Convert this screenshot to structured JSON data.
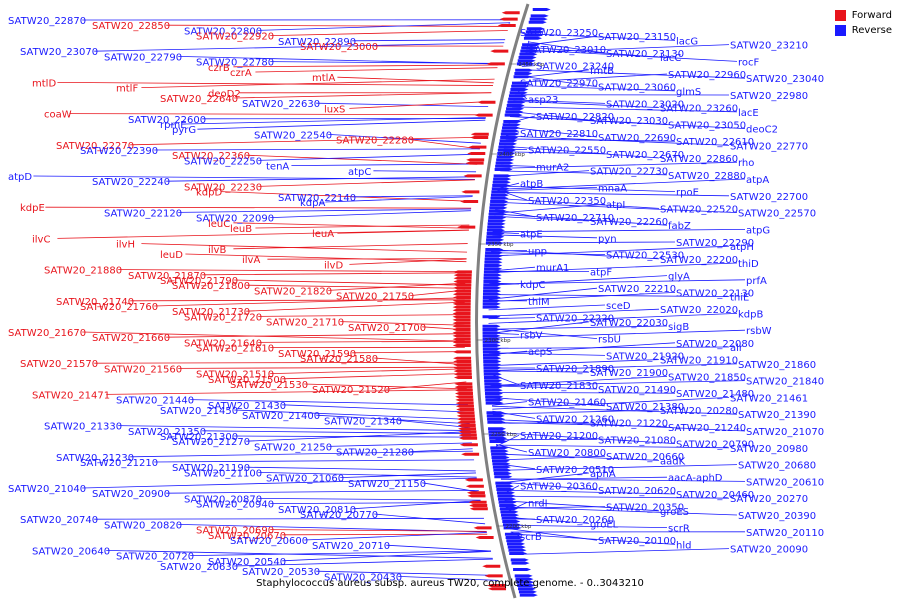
{
  "title": "Staphylococcus aureus subsp. aureus TW20, complete genome. - 0..3043210",
  "legend": [
    {
      "label": "Forward",
      "color": "#e8141c"
    },
    {
      "label": "Reverse",
      "color": "#1a1aff"
    }
  ],
  "scale_labels": [
    "2450 kbp",
    "2400 kbp",
    "2350 kbp",
    "2300 kbp",
    "2250 kbp",
    "2200 kbp"
  ],
  "left_labels": [
    [
      "SATW20_22870",
      "r"
    ],
    [
      "SATW20_22850",
      "f"
    ],
    [
      "SATW20_22800",
      "r"
    ],
    [
      "SATW20_22920",
      "f"
    ],
    [
      "SATW20_22890",
      "r"
    ],
    [
      "SATW20_23000",
      "f"
    ],
    [
      "SATW20_23070",
      "r"
    ],
    [
      "SATW20_22790",
      "r"
    ],
    [
      "SATW20_22780",
      "r"
    ],
    [
      "czrB",
      "f"
    ],
    [
      "czrA",
      "f"
    ],
    [
      "mtlA",
      "f"
    ],
    [
      "mtlD",
      "f"
    ],
    [
      "mtlF",
      "f"
    ],
    [
      "deoD2",
      "f"
    ],
    [
      "SATW20_22640",
      "f"
    ],
    [
      "SATW20_22630",
      "r"
    ],
    [
      "luxS",
      "f"
    ],
    [
      "coaW",
      "f"
    ],
    [
      "SATW20_22600",
      "r"
    ],
    [
      "rpmE",
      "r"
    ],
    [
      "pyrG",
      "r"
    ],
    [
      "SATW20_22540",
      "r"
    ],
    [
      "SATW20_22280",
      "f"
    ],
    [
      "SATW20_22270",
      "f"
    ],
    [
      "SATW20_22390",
      "r"
    ],
    [
      "SATW20_22360",
      "f"
    ],
    [
      "SATW20_22250",
      "r"
    ],
    [
      "tenA",
      "r"
    ],
    [
      "atpC",
      "r"
    ],
    [
      "atpD",
      "r"
    ],
    [
      "SATW20_22240",
      "r"
    ],
    [
      "SATW20_22230",
      "f"
    ],
    [
      "kdpD",
      "f"
    ],
    [
      "SATW20_22140",
      "r"
    ],
    [
      "kdpA",
      "r"
    ],
    [
      "kdpE",
      "f"
    ],
    [
      "SATW20_22120",
      "r"
    ],
    [
      "SATW20_22090",
      "r"
    ],
    [
      "leuC",
      "f"
    ],
    [
      "leuB",
      "f"
    ],
    [
      "leuA",
      "f"
    ],
    [
      "ilvC",
      "f"
    ],
    [
      "ilvH",
      "f"
    ],
    [
      "ilvB",
      "f"
    ],
    [
      "leuD",
      "f"
    ],
    [
      "ilvA",
      "f"
    ],
    [
      "ilvD",
      "f"
    ],
    [
      "SATW20_21880",
      "f"
    ],
    [
      "SATW20_21870",
      "f"
    ],
    [
      "SATW20_21790",
      "f"
    ],
    [
      "SATW20_21800",
      "f"
    ],
    [
      "SATW20_21820",
      "f"
    ],
    [
      "SATW20_21750",
      "f"
    ],
    [
      "SATW20_21740",
      "f"
    ],
    [
      "SATW20_21760",
      "f"
    ],
    [
      "SATW20_21730",
      "f"
    ],
    [
      "SATW20_21720",
      "f"
    ],
    [
      "SATW20_21710",
      "f"
    ],
    [
      "SATW20_21700",
      "f"
    ],
    [
      "SATW20_21670",
      "f"
    ],
    [
      "SATW20_21660",
      "f"
    ],
    [
      "SATW20_21640",
      "f"
    ],
    [
      "SATW20_21610",
      "f"
    ],
    [
      "SATW20_21590",
      "f"
    ],
    [
      "SATW20_21580",
      "f"
    ],
    [
      "SATW20_21570",
      "f"
    ],
    [
      "SATW20_21560",
      "f"
    ],
    [
      "SATW20_21510",
      "f"
    ],
    [
      "SATW20_21500",
      "f"
    ],
    [
      "SATW20_21530",
      "f"
    ],
    [
      "SATW20_21520",
      "f"
    ],
    [
      "SATW20_21471",
      "f"
    ],
    [
      "SATW20_21440",
      "r"
    ],
    [
      "SATW20_21430",
      "r"
    ],
    [
      "SATW20_21450",
      "r"
    ],
    [
      "SATW20_21400",
      "r"
    ],
    [
      "SATW20_21340",
      "r"
    ],
    [
      "SATW20_21330",
      "r"
    ],
    [
      "SATW20_21350",
      "r"
    ],
    [
      "SATW20_21300",
      "r"
    ],
    [
      "SATW20_21270",
      "r"
    ],
    [
      "SATW20_21250",
      "r"
    ],
    [
      "SATW20_21280",
      "r"
    ],
    [
      "SATW20_21230",
      "r"
    ],
    [
      "SATW20_21210",
      "r"
    ],
    [
      "SATW20_21190",
      "r"
    ],
    [
      "SATW20_21100",
      "r"
    ],
    [
      "SATW20_21060",
      "r"
    ],
    [
      "SATW20_21150",
      "r"
    ],
    [
      "SATW20_21040",
      "r"
    ],
    [
      "SATW20_20900",
      "r"
    ],
    [
      "SATW20_20870",
      "r"
    ],
    [
      "SATW20_20940",
      "r"
    ],
    [
      "SATW20_20810",
      "r"
    ],
    [
      "SATW20_20770",
      "r"
    ],
    [
      "SATW20_20740",
      "r"
    ],
    [
      "SATW20_20820",
      "r"
    ],
    [
      "SATW20_20690",
      "f"
    ],
    [
      "SATW20_20670",
      "f"
    ],
    [
      "SATW20_20600",
      "r"
    ],
    [
      "SATW20_20710",
      "r"
    ],
    [
      "SATW20_20640",
      "r"
    ],
    [
      "SATW20_20720",
      "r"
    ],
    [
      "SATW20_20540",
      "r"
    ],
    [
      "SATW20_20630",
      "r"
    ],
    [
      "SATW20_20530",
      "r"
    ],
    [
      "SATW20_20430",
      "r"
    ]
  ],
  "right_labels": [
    "SATW20_23250",
    "SATW20_23150",
    "lacG",
    "SATW20_23210",
    "SATW20_23010",
    "SATW20_23130",
    "lacC",
    "rocF",
    "SATW20_23240",
    "fmtB",
    "SATW20_22960",
    "SATW20_23040",
    "SATW20_22970",
    "SATW20_23060",
    "glmS",
    "SATW20_22980",
    "asp23",
    "SATW20_23020",
    "SATW20_23260",
    "lacE",
    "SATW20_22820",
    "SATW20_23030",
    "SATW20_23050",
    "deoC2",
    "SATW20_22810",
    "SATW20_22690",
    "SATW20_22610",
    "SATW20_22770",
    "SATW20_22550",
    "SATW20_22670",
    "SATW20_22860",
    "rho",
    "murA2",
    "SATW20_22730",
    "SATW20_22880",
    "atpA",
    "atpB",
    "mnaA",
    "rpoE",
    "SATW20_22700",
    "SATW20_22350",
    "atpI",
    "SATW20_22520",
    "SATW20_22570",
    "SATW20_22710",
    "SATW20_22260",
    "fabZ",
    "atpG",
    "atpE",
    "pyn",
    "SATW20_22290",
    "atpH",
    "upp",
    "SATW20_22530",
    "SATW20_22200",
    "thiD",
    "murA1",
    "atpF",
    "glyA",
    "prfA",
    "kdpC",
    "SATW20_22210",
    "SATW20_22130",
    "thiE",
    "thiM",
    "sceD",
    "SATW20_22020",
    "kdpB",
    "SATW20_22220",
    "SATW20_22030",
    "sigB",
    "rsbW",
    "rsbV",
    "rsbU",
    "SATW20_22080",
    "alr",
    "acpS",
    "SATW20_21920",
    "SATW20_21910",
    "SATW20_21860",
    "SATW20_21890",
    "SATW20_21900",
    "SATW20_21850",
    "SATW20_21840",
    "SATW20_21830",
    "SATW20_21490",
    "SATW20_21480",
    "SATW20_21461",
    "SATW20_21460",
    "SATW20_21380",
    "SATW20_20280",
    "SATW20_21390",
    "SATW20_21260",
    "SATW20_21220",
    "SATW20_21240",
    "SATW20_21070",
    "SATW20_21200",
    "SATW20_21080",
    "SATW20_20790",
    "SATW20_20980",
    "SATW20_20800",
    "SATW20_20660",
    "aadK",
    "SATW20_20680",
    "SATW20_20510",
    "aphA",
    "aacA-aphD",
    "SATW20_20610",
    "SATW20_20360",
    "SATW20_20620",
    "SATW20_20460",
    "SATW20_20270",
    "nrdI",
    "SATW20_20350",
    "groES",
    "SATW20_20390",
    "SATW20_20260",
    "groEL",
    "scrR",
    "SATW20_20110",
    "scrB",
    "SATW20_20100",
    "hld",
    "SATW20_20090"
  ]
}
